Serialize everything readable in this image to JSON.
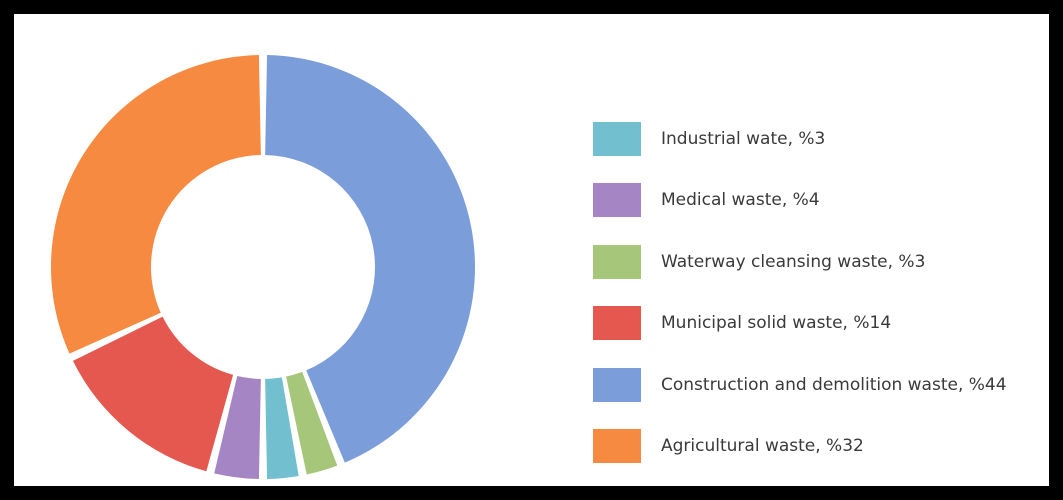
{
  "chart_data": {
    "type": "pie",
    "donut": true,
    "title": "",
    "legend_position": "right",
    "slices": [
      {
        "label": "Industrial wate, %3",
        "value": 3,
        "color": "#72bfcf"
      },
      {
        "label": "Medical waste, %4",
        "value": 4,
        "color": "#a685c4"
      },
      {
        "label": "Waterway cleansing waste, %3",
        "value": 3,
        "color": "#a6c67a"
      },
      {
        "label": "Municipal solid waste, %14",
        "value": 14,
        "color": "#e4584f"
      },
      {
        "label": "Construction and demolition waste, %44",
        "value": 44,
        "color": "#7b9dd9"
      },
      {
        "label": "Agricultural waste, %32",
        "value": 32,
        "color": "#f68a40"
      }
    ],
    "order": [
      "Construction and demolition waste, %44",
      "Waterway cleansing waste, %3",
      "Industrial wate, %3",
      "Medical waste, %4",
      "Municipal solid waste, %14",
      "Agricultural waste, %32"
    ]
  }
}
